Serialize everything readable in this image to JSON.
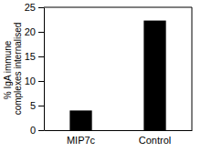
{
  "chart_data": {
    "type": "bar",
    "y_label": "% IgA immune complexes internalised",
    "categories": [
      "MIP7c",
      "Control"
    ],
    "values": [
      4,
      22.3
    ],
    "color": "#000000",
    "ylim": [
      0,
      25
    ],
    "yticks": [
      0,
      5,
      10,
      15,
      20,
      25
    ],
    "grid": false
  }
}
